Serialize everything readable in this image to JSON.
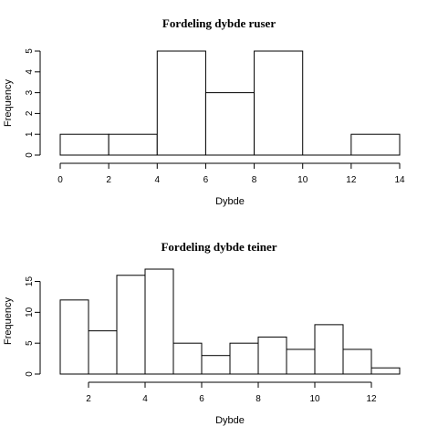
{
  "chart_data": [
    {
      "type": "bar",
      "title": "Fordeling dybde ruser",
      "xlabel": "Dybde",
      "ylabel": "Frequency",
      "bins": [
        [
          0,
          2
        ],
        [
          2,
          4
        ],
        [
          4,
          6
        ],
        [
          6,
          8
        ],
        [
          8,
          10
        ],
        [
          10,
          12
        ],
        [
          12,
          14
        ]
      ],
      "values": [
        1,
        1,
        5,
        3,
        5,
        0,
        1
      ],
      "xlim": [
        0,
        14
      ],
      "ylim": [
        0,
        5
      ],
      "xticks": [
        0,
        2,
        4,
        6,
        8,
        10,
        12,
        14
      ],
      "yticks": [
        0,
        1,
        2,
        3,
        4,
        5
      ],
      "grid": false
    },
    {
      "type": "bar",
      "title": "Fordeling dybde teiner",
      "xlabel": "Dybde",
      "ylabel": "Frequency",
      "bins": [
        [
          1,
          2
        ],
        [
          2,
          3
        ],
        [
          3,
          4
        ],
        [
          4,
          5
        ],
        [
          5,
          6
        ],
        [
          6,
          7
        ],
        [
          7,
          8
        ],
        [
          8,
          9
        ],
        [
          9,
          10
        ],
        [
          10,
          11
        ],
        [
          11,
          12
        ],
        [
          12,
          13
        ]
      ],
      "values": [
        12,
        7,
        16,
        17,
        5,
        3,
        5,
        6,
        4,
        8,
        4,
        1
      ],
      "xlim": [
        1,
        13
      ],
      "ylim": [
        0,
        17
      ],
      "xticks": [
        2,
        4,
        6,
        8,
        10,
        12
      ],
      "yticks": [
        0,
        5,
        10,
        15
      ],
      "grid": false
    }
  ]
}
